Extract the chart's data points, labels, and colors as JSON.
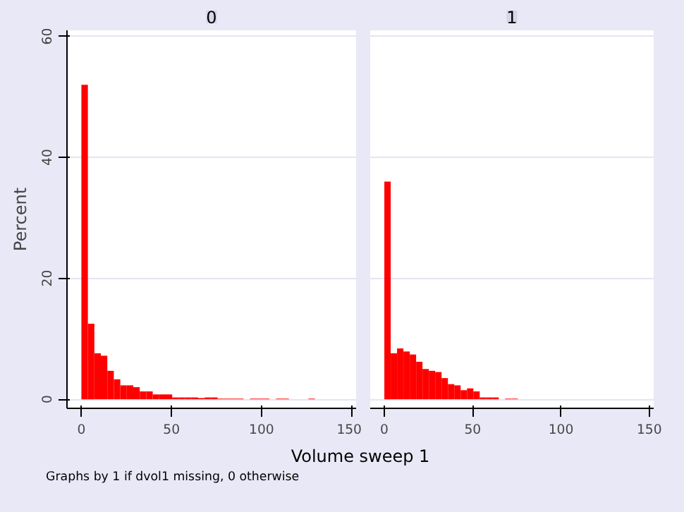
{
  "chart_data": [
    {
      "type": "histogram",
      "title": "0",
      "xlabel": "Volume sweep 1",
      "ylabel": "Percent",
      "annotations": [
        "Graphs by 1 if dvol1 missing, 0 otherwise"
      ],
      "color": "#ff0000",
      "bins": [
        0,
        3.6,
        7.2,
        10.8,
        14.4,
        18,
        21.6,
        25.2,
        28.8,
        32.4,
        36,
        39.6,
        43.2,
        46.8,
        50.4,
        54,
        57.6,
        61.2,
        64.8,
        68.4,
        72,
        75.6,
        79.2,
        82.8,
        86.4,
        90,
        93.6,
        97.2,
        100.8,
        104.4,
        108,
        111.6,
        115.2,
        118.8,
        122.4,
        126,
        129.6
      ],
      "values": [
        52,
        12.5,
        7.6,
        7.2,
        4.7,
        3.3,
        2.3,
        2.3,
        2.0,
        1.3,
        1.3,
        0.8,
        0.8,
        0.8,
        0.3,
        0.3,
        0.3,
        0.3,
        0.2,
        0.3,
        0.3,
        0.1,
        0.1,
        0.1,
        0.1,
        0,
        0.1,
        0.1,
        0.1,
        0,
        0.1,
        0.1,
        0,
        0,
        0,
        0.1
      ],
      "xlim": [
        -8,
        152.5
      ],
      "xticks": [
        0,
        50,
        100,
        150
      ],
      "ylim": [
        -1.5,
        61
      ],
      "yticks": [
        0,
        20,
        40,
        60
      ],
      "grid": "y"
    },
    {
      "type": "histogram",
      "title": "1",
      "color": "#ff0000",
      "bins": [
        0,
        3.6,
        7.2,
        10.8,
        14.4,
        18,
        21.6,
        25.2,
        28.8,
        32.4,
        36,
        39.6,
        43.2,
        46.8,
        50.4,
        54,
        57.6,
        61.2,
        64.8,
        68.4,
        72,
        75.6
      ],
      "values": [
        36,
        7.6,
        8.4,
        7.9,
        7.4,
        6.2,
        5.0,
        4.7,
        4.5,
        3.5,
        2.5,
        2.3,
        1.5,
        1.8,
        1.3,
        0.3,
        0.3,
        0.3,
        0,
        0.1,
        0.1
      ],
      "xlim": [
        -8,
        152.5
      ],
      "xticks": [
        0,
        50,
        100,
        150
      ],
      "ylim": [
        -1.5,
        61
      ],
      "yticks": [
        0,
        20,
        40,
        60
      ],
      "grid": "y",
      "tick_labels": "x"
    }
  ]
}
